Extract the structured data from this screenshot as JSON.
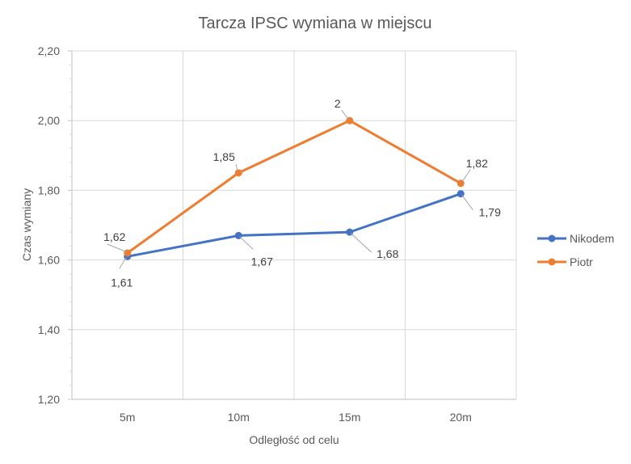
{
  "chart_data": {
    "type": "line",
    "title": "Tarcza IPSC wymiana w miejscu",
    "xlabel": "Odległość od celu",
    "ylabel": "Czas wymiany",
    "categories": [
      "5m",
      "10m",
      "15m",
      "20m"
    ],
    "ylim": [
      1.2,
      2.2
    ],
    "yticks": [
      "1,20",
      "1,40",
      "1,60",
      "1,80",
      "2,00",
      "2,20"
    ],
    "grid": true,
    "legend_position": "right",
    "series": [
      {
        "name": "Nikodem",
        "color": "#4472C4",
        "values": [
          1.61,
          1.67,
          1.68,
          1.79
        ],
        "labels": [
          "1,61",
          "1,67",
          "1,68",
          "1,79"
        ]
      },
      {
        "name": "Piotr",
        "color": "#ED7D31",
        "values": [
          1.62,
          1.85,
          2.0,
          1.82
        ],
        "labels": [
          "1,62",
          "1,85",
          "2",
          "1,82"
        ]
      }
    ]
  }
}
